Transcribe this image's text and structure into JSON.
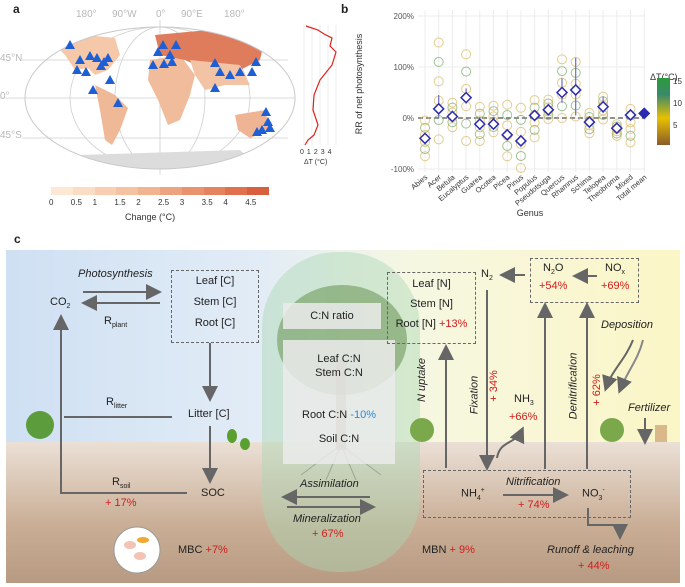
{
  "panel_a": {
    "label": "a",
    "longitude_labels": [
      "180°",
      "90°W",
      "0°",
      "90°E",
      "180°"
    ],
    "latitude_labels": [
      "45°N",
      "0°",
      "45°S"
    ],
    "profile": {
      "tick_labels": [
        "0",
        "1",
        "2",
        "3",
        "4"
      ],
      "xlabel": "ΔT (°C)",
      "line_color": "#e0201c"
    },
    "colorbar": {
      "tick_labels": [
        "0",
        "0.5",
        "1",
        "1.5",
        "2",
        "2.5",
        "3",
        "3.5",
        "4",
        "4.5"
      ],
      "title": "Change (°C)",
      "colors": [
        "#fde8d4",
        "#fbdcc4",
        "#f8cfb3",
        "#f5c2a2",
        "#f1b390",
        "#eca37f",
        "#e8936d",
        "#e4835d",
        "#df724d",
        "#d9603e"
      ]
    },
    "site_marker_color": "#1f5fd6"
  },
  "chart_data": {
    "type": "scatter",
    "label": "b",
    "xlabel": "Genus",
    "ylabel": "RR of net photosynthesis",
    "ylim": [
      -100,
      200
    ],
    "yticks": [
      "200%",
      "100%",
      "0%",
      "-100%"
    ],
    "ytick_values": [
      200,
      100,
      0,
      -100
    ],
    "categories": [
      "Abies",
      "Acer",
      "Betula",
      "Eucalyptus",
      "Guarea",
      "Ocotea",
      "Picea",
      "Pinus",
      "Populus",
      "Pseudotsuga",
      "Quercus",
      "Rhamnus",
      "Schima",
      "Telopea",
      "Theobroma",
      "Mixed",
      "Total mean"
    ],
    "means": [
      -40,
      18,
      3,
      40,
      -12,
      -12,
      -33,
      -45,
      5,
      16,
      50,
      55,
      -8,
      22,
      -20,
      6,
      9
    ],
    "ci_low": [
      -50,
      0,
      -8,
      28,
      -22,
      -22,
      -42,
      -55,
      -2,
      8,
      30,
      5,
      -16,
      10,
      -26,
      -4,
      5
    ],
    "ci_high": [
      -30,
      45,
      14,
      58,
      2,
      2,
      -24,
      -33,
      12,
      24,
      78,
      118,
      0,
      42,
      -14,
      16,
      13
    ],
    "obs_range": [
      [
        -75,
        -5
      ],
      [
        -42,
        148
      ],
      [
        -18,
        30
      ],
      [
        -45,
        125
      ],
      [
        -45,
        22
      ],
      [
        -28,
        24
      ],
      [
        -75,
        26
      ],
      [
        -98,
        20
      ],
      [
        -38,
        35
      ],
      [
        -2,
        36
      ],
      [
        0,
        115
      ],
      [
        3,
        110
      ],
      [
        -30,
        10
      ],
      [
        -3,
        42
      ],
      [
        -35,
        -12
      ],
      [
        -48,
        18
      ],
      null
    ],
    "reference_line": 0,
    "legend": {
      "title": "ΔT(°C)",
      "tick_labels": [
        "15",
        "10",
        "5"
      ],
      "colors": [
        "#8b5a2b",
        "#e8c000",
        "#3a8a6a",
        "#2a9a3a"
      ],
      "placement": "right"
    },
    "mean_marker_color": "#2b2bb0",
    "grid": true
  },
  "panel_c": {
    "label": "c",
    "carbon": {
      "photosynthesis": "Photosynthesis",
      "co2": {
        "base": "CO",
        "sub": "2"
      },
      "r_plant": {
        "base": "R",
        "sub": "plant"
      },
      "leaf_c": "Leaf [C]",
      "stem_c": "Stem [C]",
      "root_c": "Root [C]",
      "r_litter": {
        "base": "R",
        "sub": "litter"
      },
      "litter_c": "Litter [C]",
      "r_soil": {
        "base": "R",
        "sub": "soil"
      },
      "r_soil_change": "+ 17%",
      "soc": "SOC",
      "mbc": "MBC",
      "mbc_change": "+7%"
    },
    "center": {
      "cn_ratio": "C:N ratio",
      "leaf_cn": "Leaf C:N",
      "stem_cn": "Stem C:N",
      "root_cn": "Root C:N",
      "root_cn_change": "-10%",
      "soil_cn": "Soil C:N",
      "assimilation": "Assimilation",
      "mineralization": "Mineralization",
      "mineralization_change": "+ 67%"
    },
    "nitrogen": {
      "leaf_n": "Leaf [N]",
      "stem_n": "Stem [N]",
      "root_n": "Root [N]",
      "root_n_change": "+13%",
      "n2": {
        "base": "N",
        "sub": "2"
      },
      "n2o": {
        "base": "N",
        "sub": "2",
        "tail": "O"
      },
      "n2o_change": "+54%",
      "nox": {
        "base": "NO",
        "sub": "x"
      },
      "nox_change": "+69%",
      "n_uptake": "N uptake",
      "fixation": "Fixation",
      "fixation_change": "+ 34%",
      "nh3": {
        "base": "NH",
        "sub": "3"
      },
      "nh3_change": "+66%",
      "denitrification": "Denitrification",
      "denitrification_change": "+ 62%",
      "deposition": "Deposition",
      "fertilizer": "Fertilizer",
      "nh4": {
        "base": "NH",
        "sub": "4",
        "sup": "+"
      },
      "nitrification": "Nitrification",
      "nitrification_change": "+ 74%",
      "no3": {
        "base": "NO",
        "sub": "3",
        "sup": "-"
      },
      "mbn": "MBN",
      "mbn_change": "+ 9%",
      "runoff": "Runoff & leaching",
      "runoff_change": "+ 44%"
    },
    "colors": {
      "increase": "#d01c1c",
      "decrease": "#2a8ad8",
      "arrow": "#666666"
    }
  }
}
